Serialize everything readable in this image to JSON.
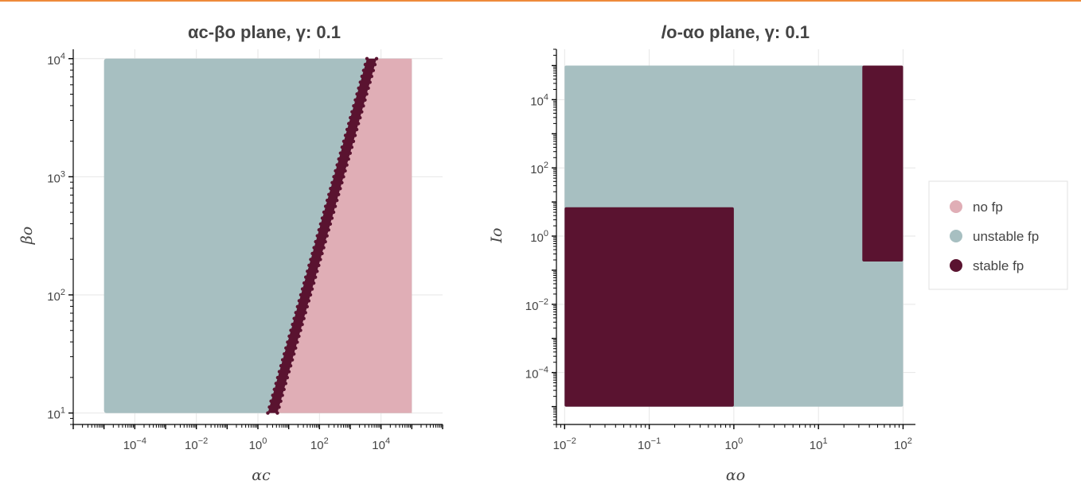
{
  "colors": {
    "accent_rule": "#ee8a3a",
    "no_fp": "#e0aeb6",
    "unstable_fp": "#a7bfc1",
    "stable_fp": "#5a1330"
  },
  "legend": {
    "placement": "right",
    "items": [
      {
        "key": "no_fp",
        "label": "no fp"
      },
      {
        "key": "unstable_fp",
        "label": "unstable fp"
      },
      {
        "key": "stable_fp",
        "label": "stable fp"
      }
    ]
  },
  "chart_data": [
    {
      "type": "scatter",
      "title": "αc-βo plane, γ: 0.1",
      "xlabel": "αc",
      "ylabel": "βo",
      "xscale": "log",
      "yscale": "log",
      "xlim": [
        1e-06,
        1000000.0
      ],
      "ylim": [
        8,
        12000
      ],
      "grid": true,
      "x_ticks": [
        {
          "base": "10",
          "exp": "−4",
          "value": 0.0001
        },
        {
          "base": "10",
          "exp": "−2",
          "value": 0.01
        },
        {
          "base": "10",
          "exp": "0",
          "value": 1
        },
        {
          "base": "10",
          "exp": "2",
          "value": 100
        },
        {
          "base": "10",
          "exp": "4",
          "value": 10000
        }
      ],
      "y_ticks": [
        {
          "base": "10",
          "exp": "1",
          "value": 10
        },
        {
          "base": "10",
          "exp": "2",
          "value": 100
        },
        {
          "base": "10",
          "exp": "3",
          "value": 1000
        },
        {
          "base": "10",
          "exp": "4",
          "value": 10000
        }
      ],
      "data_extent": {
        "x": [
          1e-05,
          100000
        ],
        "y": [
          10,
          10000
        ]
      },
      "regions": [
        {
          "category": "unstable_fp",
          "description": "αc below stable band",
          "x_range": [
            1e-05,
            100000
          ],
          "y_range": [
            10,
            10000
          ]
        },
        {
          "category": "no_fp",
          "description": "αc above stable band",
          "boundary_points": [
            {
              "x": 3,
              "y": 10
            },
            {
              "x": 5000,
              "y": 10000
            }
          ]
        },
        {
          "category": "stable_fp",
          "description": "thin band",
          "boundary_points": [
            {
              "x": 3,
              "y": 10
            },
            {
              "x": 5000,
              "y": 10000
            }
          ]
        }
      ]
    },
    {
      "type": "scatter",
      "title": "𝐼o-αo plane, γ: 0.1",
      "xlabel": "αo",
      "ylabel": "𝐼o",
      "xscale": "log",
      "yscale": "log",
      "xlim": [
        0.008,
        140
      ],
      "ylim": [
        3e-06,
        300000
      ],
      "grid": true,
      "x_ticks": [
        {
          "base": "10",
          "exp": "−2",
          "value": 0.01
        },
        {
          "base": "10",
          "exp": "−1",
          "value": 0.1
        },
        {
          "base": "10",
          "exp": "0",
          "value": 1
        },
        {
          "base": "10",
          "exp": "1",
          "value": 10
        },
        {
          "base": "10",
          "exp": "2",
          "value": 100
        }
      ],
      "y_ticks": [
        {
          "base": "10",
          "exp": "−4",
          "value": 0.0001
        },
        {
          "base": "10",
          "exp": "−2",
          "value": 0.01
        },
        {
          "base": "10",
          "exp": "0",
          "value": 1
        },
        {
          "base": "10",
          "exp": "2",
          "value": 100
        },
        {
          "base": "10",
          "exp": "4",
          "value": 10000
        }
      ],
      "data_extent": {
        "x": [
          0.01,
          100
        ],
        "y": [
          1e-05,
          100000
        ]
      },
      "regions": [
        {
          "category": "unstable_fp",
          "x_range": [
            0.01,
            100
          ],
          "y_range": [
            1e-05,
            100000
          ]
        },
        {
          "category": "stable_fp",
          "x_range": [
            0.01,
            1
          ],
          "y_range": [
            1e-05,
            7
          ]
        },
        {
          "category": "stable_fp",
          "x_range": [
            33,
            100
          ],
          "y_range": [
            0.18,
            100000
          ]
        }
      ]
    }
  ]
}
